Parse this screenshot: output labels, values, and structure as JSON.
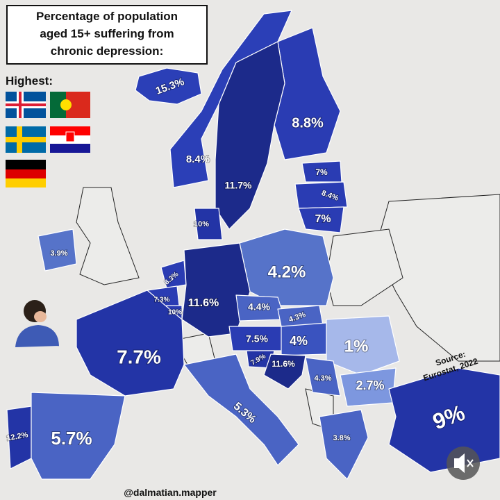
{
  "title": [
    "Percentage of population",
    "aged 15+ suffering from",
    "chronic depression:"
  ],
  "highest_label": "Highest:",
  "source": [
    "Source:",
    "Eurostat, 2022"
  ],
  "credit": "@dalmatian.mapper",
  "regions": [
    {
      "label": "15.3%"
    },
    {
      "label": "8.8%"
    },
    {
      "label": "8.4%"
    },
    {
      "label": "11.7%"
    },
    {
      "label": "7%"
    },
    {
      "label": "8.4%"
    },
    {
      "label": "7%"
    },
    {
      "label": "10%"
    },
    {
      "label": "3.9%"
    },
    {
      "label": "4.2%"
    },
    {
      "label": "8.3%"
    },
    {
      "label": "11.6%"
    },
    {
      "label": "7.3%"
    },
    {
      "label": "10%"
    },
    {
      "label": "4.4%"
    },
    {
      "label": "4.3%"
    },
    {
      "label": "7.5%"
    },
    {
      "label": "4%"
    },
    {
      "label": "1%"
    },
    {
      "label": "7.7%"
    },
    {
      "label": "7.9%"
    },
    {
      "label": "11.6%"
    },
    {
      "label": "4.3%"
    },
    {
      "label": "2.7%"
    },
    {
      "label": "5.3%"
    },
    {
      "label": "9%"
    },
    {
      "label": "12.2%"
    },
    {
      "label": "5.7%"
    },
    {
      "label": "3.8%"
    }
  ]
}
